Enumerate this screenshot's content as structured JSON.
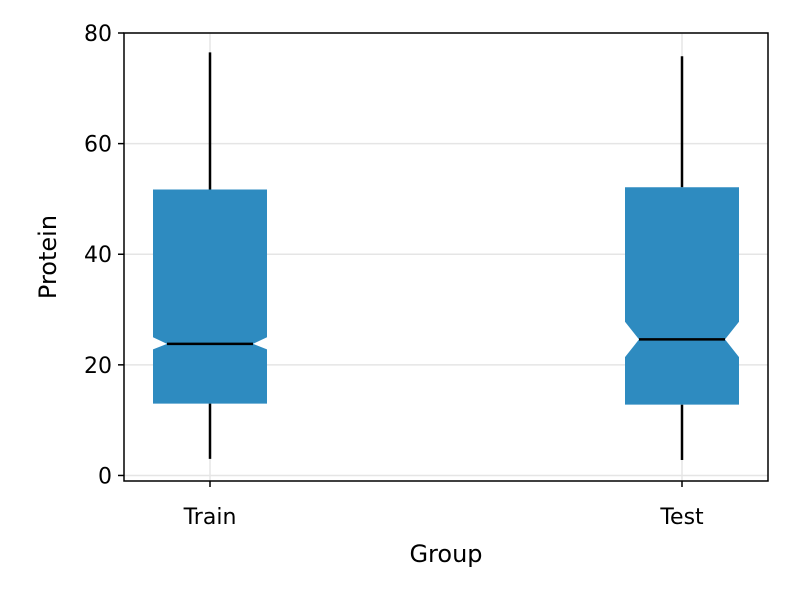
{
  "chart_data": {
    "type": "boxplot",
    "notched": true,
    "categories": [
      "Train",
      "Test"
    ],
    "xlabel": "Group",
    "ylabel": "Protein",
    "ylim": [
      -1,
      80
    ],
    "yticks": [
      0,
      20,
      40,
      60,
      80
    ],
    "grid": true,
    "box_color": "#2e8bc0",
    "boxes": [
      {
        "category": "Train",
        "whisker_low": 3,
        "q1": 13,
        "notch_low": 22.8,
        "median": 23.8,
        "notch_high": 25,
        "q3": 51.7,
        "whisker_high": 76.5
      },
      {
        "category": "Test",
        "whisker_low": 2.8,
        "q1": 12.8,
        "notch_low": 21.4,
        "median": 24.6,
        "notch_high": 27.8,
        "q3": 52.1,
        "whisker_high": 75.8
      }
    ]
  }
}
